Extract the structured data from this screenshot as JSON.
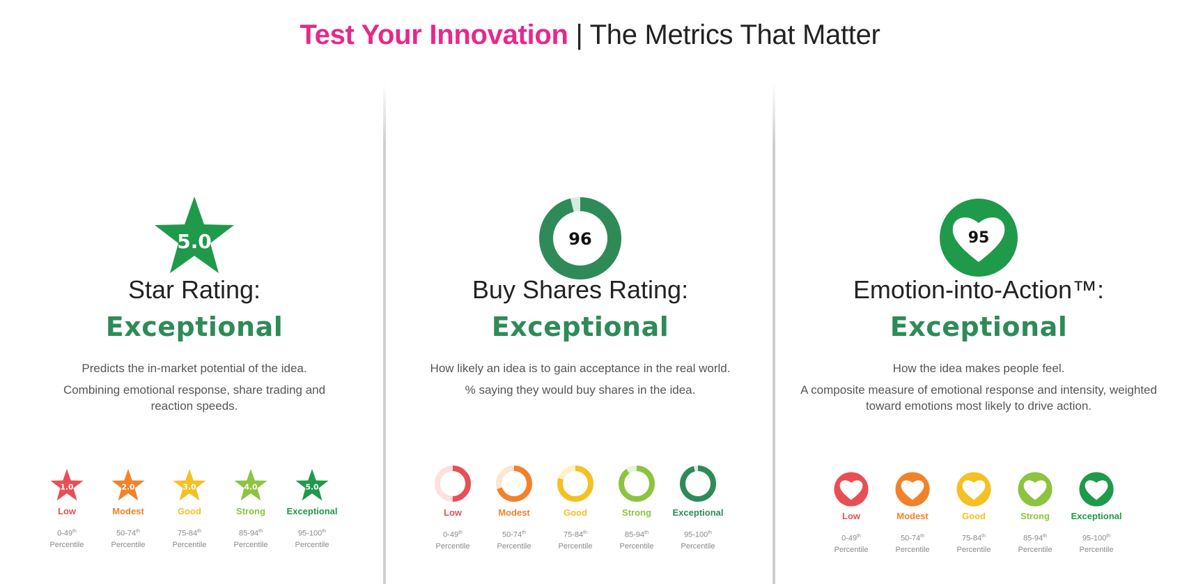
{
  "header": {
    "title_accent": "Test Your Innovation",
    "title_separator": "|",
    "title_rest": "The Metrics That Matter",
    "accent_color": "#e8288a"
  },
  "panels": [
    {
      "icon": "star-icon",
      "hero_value": "5.0",
      "label": "Star Rating:",
      "rating": "Exceptional",
      "description": [
        "Predicts the in-market potential of the idea.",
        "Combining emotional response, share trading and reaction speeds."
      ],
      "scale": [
        {
          "value": "1.0",
          "name": "Low",
          "range": "0-49",
          "sup": "th",
          "unit": "Percentile",
          "color": "#e84f54"
        },
        {
          "value": "2.0",
          "name": "Modest",
          "range": "50-74",
          "sup": "th",
          "unit": "Percentile",
          "color": "#f2822a"
        },
        {
          "value": "3.0",
          "name": "Good",
          "range": "75-84",
          "sup": "th",
          "unit": "Percentile",
          "color": "#f5c024"
        },
        {
          "value": "4.0",
          "name": "Strong",
          "range": "85-94",
          "sup": "th",
          "unit": "Percentile",
          "color": "#8cc43f"
        },
        {
          "value": "5.0",
          "name": "Exceptional",
          "range": "95-100",
          "sup": "th",
          "unit": "Percentile",
          "color": "#1f9a4a"
        }
      ]
    },
    {
      "icon": "donut-gauge-icon",
      "hero_value": "96",
      "hero_fill": 0.96,
      "label": "Buy Shares Rating:",
      "rating": "Exceptional",
      "description": [
        "How likely an idea is to gain acceptance in the real world.",
        "% saying they would buy shares in the idea."
      ],
      "scale": [
        {
          "fill": 0.5,
          "name": "Low",
          "range": "0-49",
          "sup": "th",
          "unit": "Percentile",
          "color": "#e84f54",
          "track": "#fde0e0"
        },
        {
          "fill": 0.7,
          "name": "Modest",
          "range": "50-74",
          "sup": "th",
          "unit": "Percentile",
          "color": "#f2822a",
          "track": "#fde6d2"
        },
        {
          "fill": 0.8,
          "name": "Good",
          "range": "75-84",
          "sup": "th",
          "unit": "Percentile",
          "color": "#f5c024",
          "track": "#fdf1c8"
        },
        {
          "fill": 0.9,
          "name": "Strong",
          "range": "85-94",
          "sup": "th",
          "unit": "Percentile",
          "color": "#8cc43f",
          "track": "#e6f2d4"
        },
        {
          "fill": 0.96,
          "name": "Exceptional",
          "range": "95-100",
          "sup": "th",
          "unit": "Percentile",
          "color": "#2e8b57",
          "track": "#d5ecdd"
        }
      ]
    },
    {
      "icon": "heart-icon",
      "hero_value": "95",
      "label": "Emotion-into-Action™:",
      "rating": "Exceptional",
      "description": [
        "How the idea makes people feel.",
        "A composite measure of emotional response and intensity, weighted toward emotions most likely to drive action."
      ],
      "scale": [
        {
          "name": "Low",
          "range": "0-49",
          "sup": "th",
          "unit": "Percentile",
          "color": "#e84f54"
        },
        {
          "name": "Modest",
          "range": "50-74",
          "sup": "th",
          "unit": "Percentile",
          "color": "#f2822a"
        },
        {
          "name": "Good",
          "range": "75-84",
          "sup": "th",
          "unit": "Percentile",
          "color": "#f5c024"
        },
        {
          "name": "Strong",
          "range": "85-94",
          "sup": "th",
          "unit": "Percentile",
          "color": "#8cc43f"
        },
        {
          "name": "Exceptional",
          "range": "95-100",
          "sup": "th",
          "unit": "Percentile",
          "color": "#1f9a4a"
        }
      ]
    }
  ],
  "colors": {
    "rating_green": "#2e8b57",
    "hero_green": "#1f9a4a"
  }
}
